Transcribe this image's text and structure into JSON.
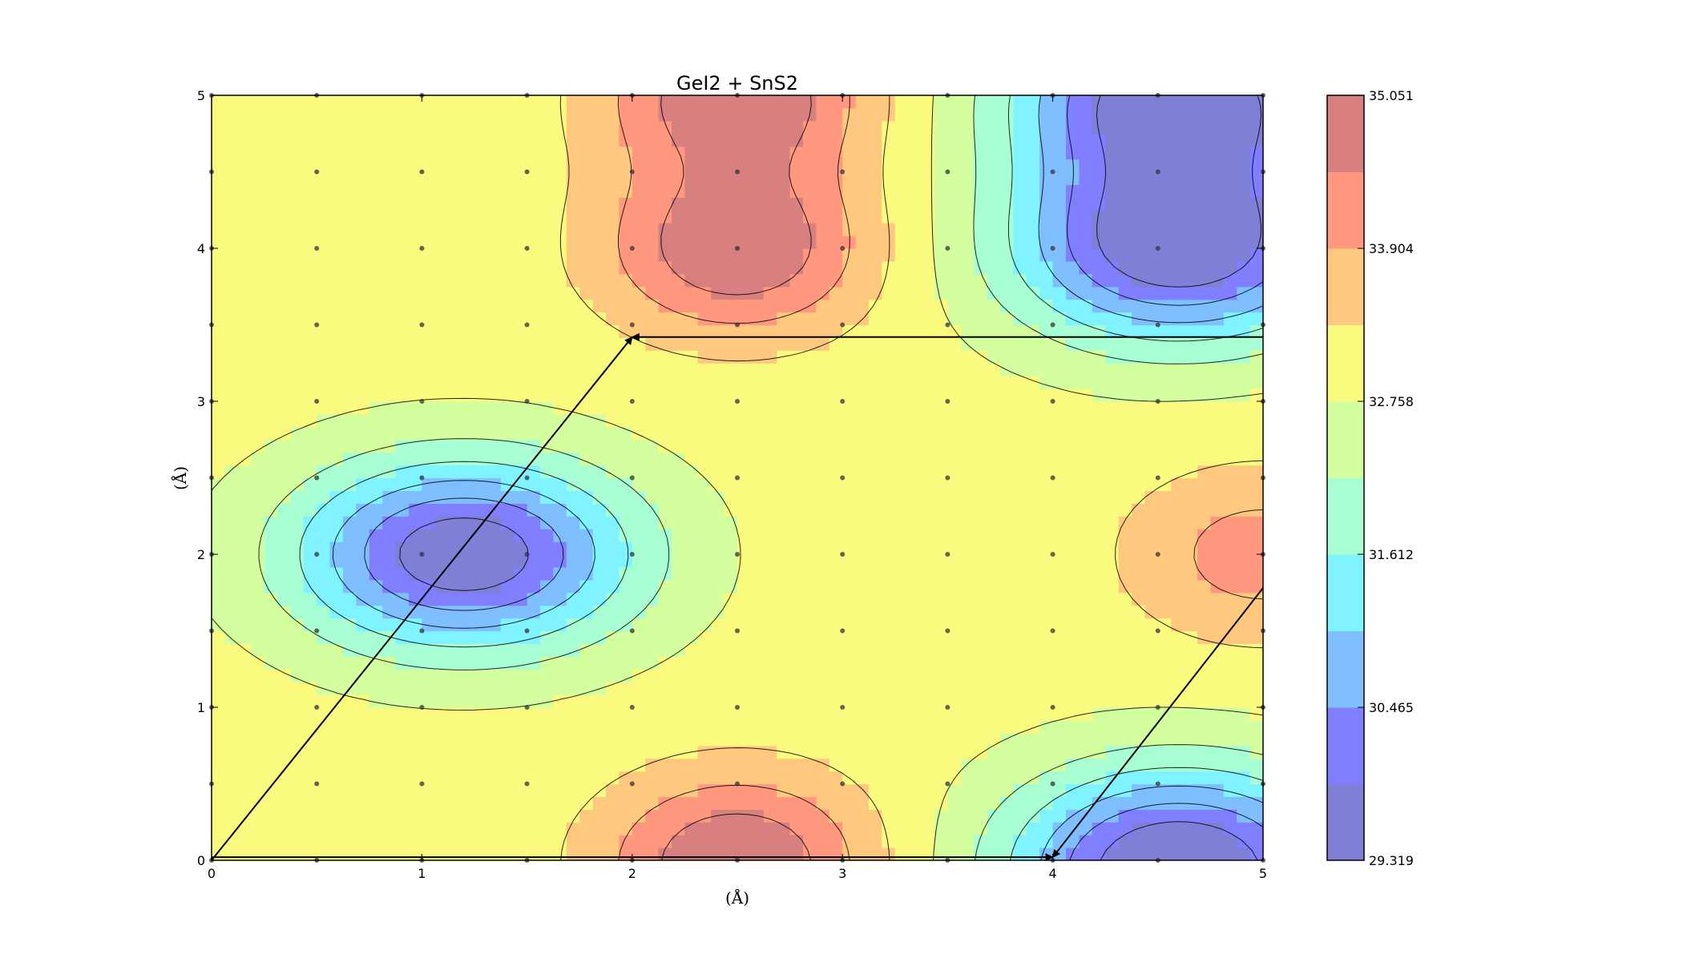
{
  "chart_data": {
    "type": "heatmap",
    "subtype": "filled-contour",
    "title": "GeI2 + SnS2",
    "xlabel": "(Å)",
    "ylabel": "(Å)",
    "xlim": [
      0,
      5
    ],
    "ylim": [
      0,
      5
    ],
    "x_ticks": [
      "0",
      "1",
      "2",
      "3",
      "4",
      "5"
    ],
    "y_ticks": [
      "0",
      "1",
      "2",
      "3",
      "4",
      "5"
    ],
    "grid": false,
    "sample_points_step": 0.5,
    "colorbar": {
      "min": 29.319,
      "max": 35.051,
      "tick_labels": [
        "29.319",
        "30.465",
        "31.612",
        "32.758",
        "33.904",
        "35.051"
      ],
      "levels": 8,
      "colors": [
        "#7f7fd6",
        "#7f7fff",
        "#7fbfff",
        "#7ff3ff",
        "#a8ffd3",
        "#d3ff9e",
        "#fafa7f",
        "#ffc87f",
        "#ff987f",
        "#d87f7f"
      ]
    },
    "features": [
      {
        "kind": "minimum",
        "x": 1.2,
        "y": 2.0,
        "value": 29.4
      },
      {
        "kind": "minimum",
        "x": 4.6,
        "y": 4.0,
        "value": 29.4
      },
      {
        "kind": "minimum",
        "x": 4.6,
        "y": 0.0,
        "value": 29.4
      },
      {
        "kind": "maximum",
        "x": 2.5,
        "y": 4.0,
        "value": 35.0
      },
      {
        "kind": "maximum",
        "x": 2.5,
        "y": 0.0,
        "value": 35.0
      },
      {
        "kind": "maximum",
        "x": 5.0,
        "y": 2.0,
        "value": 34.2
      }
    ],
    "arrows": [
      {
        "from": [
          0,
          0
        ],
        "to": [
          2.0,
          3.42
        ]
      },
      {
        "from": [
          5,
          3.42
        ],
        "to": [
          2.0,
          3.42
        ]
      },
      {
        "from": [
          0,
          0.02
        ],
        "to": [
          4.0,
          0.02
        ]
      },
      {
        "from": [
          5,
          1.78
        ],
        "to": [
          4.0,
          0.02
        ]
      }
    ]
  }
}
